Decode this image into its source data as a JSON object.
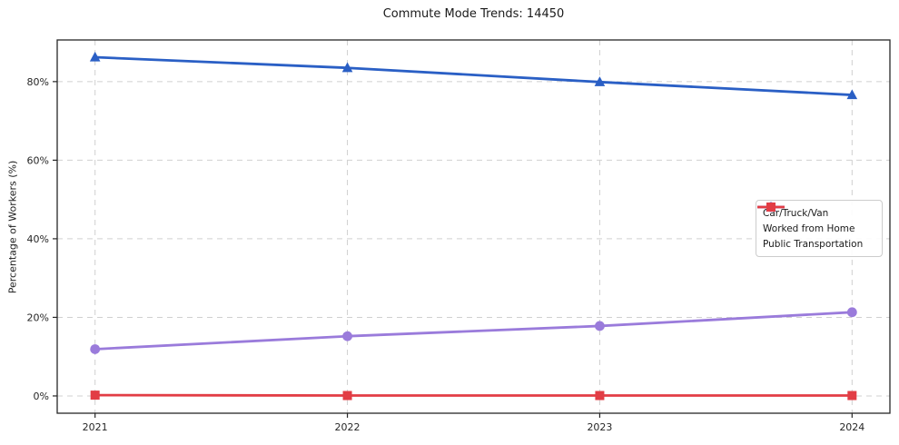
{
  "figure": {
    "background": "#ffffff",
    "axis_color": "#262626",
    "grid_color": "#d0d0d0",
    "legend_border_color": "#cccccc"
  },
  "chart_data": {
    "type": "line",
    "title": "Commute Mode Trends: 14450",
    "xlabel": "",
    "ylabel": "Percentage of Workers (%)",
    "x": [
      2021,
      2022,
      2023,
      2024
    ],
    "xlim": [
      2020.85,
      2024.15
    ],
    "ylim": [
      -4.4,
      90.6
    ],
    "yticks": [
      0,
      20,
      40,
      60,
      80
    ],
    "ytick_suffix": "%",
    "grid": "dashed",
    "legend_position": "center-right",
    "series": [
      {
        "name": "Car/Truck/Van",
        "color": "#2a5fc5",
        "marker": "triangle",
        "values": [
          86.2,
          83.5,
          79.9,
          76.6
        ]
      },
      {
        "name": "Worked from Home",
        "color": "#9a7bdb",
        "marker": "circle",
        "values": [
          11.9,
          15.2,
          17.8,
          21.3
        ]
      },
      {
        "name": "Public Transportation",
        "color": "#e23d45",
        "marker": "square",
        "values": [
          0.2,
          0.1,
          0.1,
          0.1
        ]
      }
    ]
  }
}
